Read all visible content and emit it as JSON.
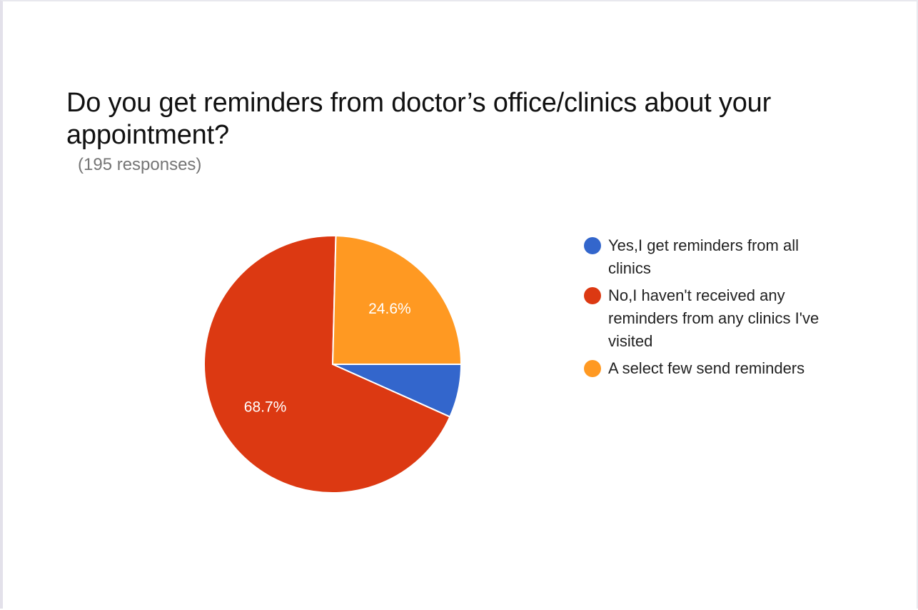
{
  "chart_data": {
    "type": "pie",
    "title": "Do you get reminders from doctor’s office/clinics about your appointment?",
    "subtitle": "(195 responses)",
    "legend_position": "right",
    "series": [
      {
        "name": "Yes,I get reminders from all clinics",
        "value": 6.7,
        "label": "",
        "color": "#3366cc"
      },
      {
        "name": "No,I haven't received any reminders from any clinics I've visited",
        "value": 68.7,
        "label": "68.7%",
        "color": "#dc3912"
      },
      {
        "name": "A select few send reminders",
        "value": 24.6,
        "label": "24.6%",
        "color": "#ff9922"
      }
    ]
  }
}
